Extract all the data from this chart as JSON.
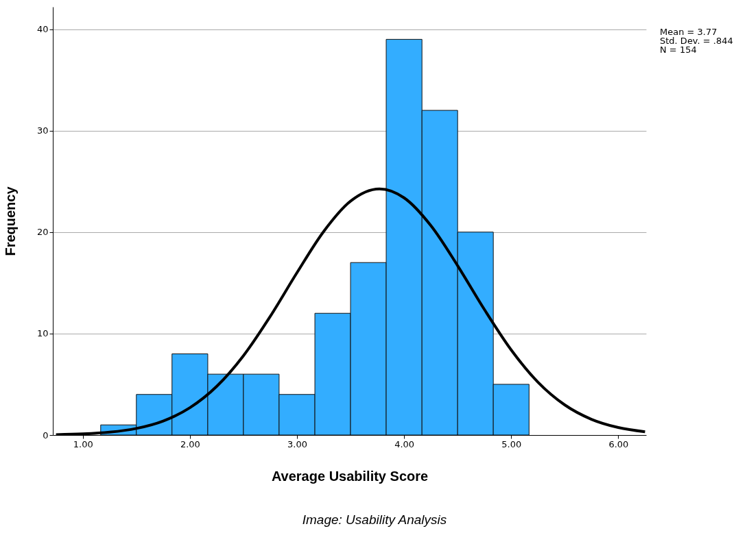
{
  "chart_data": {
    "type": "histogram",
    "xlabel": "Average Usability Score",
    "ylabel": "Frequency",
    "bins": [
      1.167,
      1.5,
      1.833,
      2.167,
      2.5,
      2.833,
      3.167,
      3.5,
      3.833,
      4.167,
      4.5,
      4.833,
      5.167
    ],
    "values": [
      1,
      4,
      8,
      6,
      6,
      4,
      12,
      17,
      39,
      32,
      20,
      5
    ],
    "color": "#33adff",
    "series": [
      {
        "type": "line",
        "color": "#000000",
        "x": [
          0.75,
          1.0,
          1.25,
          1.5,
          1.75,
          2.0,
          2.25,
          2.5,
          2.75,
          3.0,
          3.25,
          3.5,
          3.77,
          4.0,
          4.25,
          4.5,
          4.75,
          5.0,
          5.25,
          5.5,
          5.75,
          6.0,
          6.25
        ],
        "values": [
          0.04,
          0.11,
          0.28,
          0.65,
          1.38,
          2.69,
          4.79,
          7.82,
          11.69,
          16.0,
          20.07,
          23.05,
          24.26,
          23.38,
          20.64,
          16.69,
          12.37,
          8.39,
          5.21,
          2.97,
          1.55,
          0.74,
          0.32
        ]
      }
    ],
    "xlim": [
      0.72,
      6.26
    ],
    "xticks": [
      {
        "value": 1,
        "label": "1.00"
      },
      {
        "value": 2,
        "label": "2.00"
      },
      {
        "value": 3,
        "label": "3.00"
      },
      {
        "value": 4,
        "label": "4.00"
      },
      {
        "value": 5,
        "label": "5.00"
      },
      {
        "value": 6,
        "label": "6.00"
      }
    ],
    "ylim": [
      0,
      42.2
    ],
    "yticks": [
      0,
      10,
      20,
      30,
      40
    ],
    "grid": "y",
    "annotations": [
      "Mean = 3.77",
      "Std. Dev. = .844",
      "N = 154",
      "Image: Usability Analysis"
    ]
  }
}
